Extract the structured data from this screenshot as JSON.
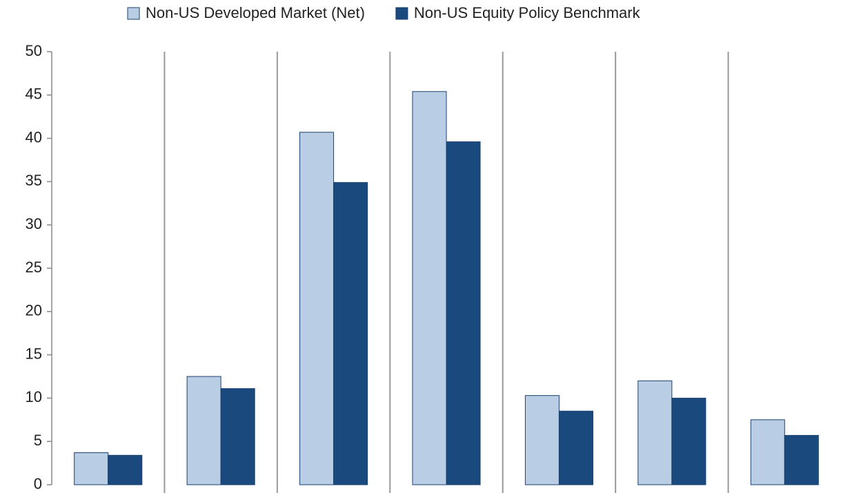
{
  "chart_data": {
    "type": "bar",
    "categories": [
      null,
      null,
      null,
      null,
      null,
      null,
      null
    ],
    "series": [
      {
        "name": "Non-US Developed Market (Net)",
        "color": "#b9cde5",
        "values": [
          3.7,
          12.5,
          40.7,
          45.4,
          10.3,
          12.0,
          7.5
        ]
      },
      {
        "name": "Non-US Equity Policy Benchmark",
        "color": "#1a497d",
        "values": [
          3.4,
          11.1,
          34.9,
          39.6,
          8.5,
          10.0,
          5.7
        ]
      }
    ],
    "ylim": [
      0,
      50
    ],
    "yticks": [
      0,
      5,
      10,
      15,
      20,
      25,
      30,
      35,
      40,
      45,
      50
    ],
    "grid": false,
    "legend": "top"
  }
}
